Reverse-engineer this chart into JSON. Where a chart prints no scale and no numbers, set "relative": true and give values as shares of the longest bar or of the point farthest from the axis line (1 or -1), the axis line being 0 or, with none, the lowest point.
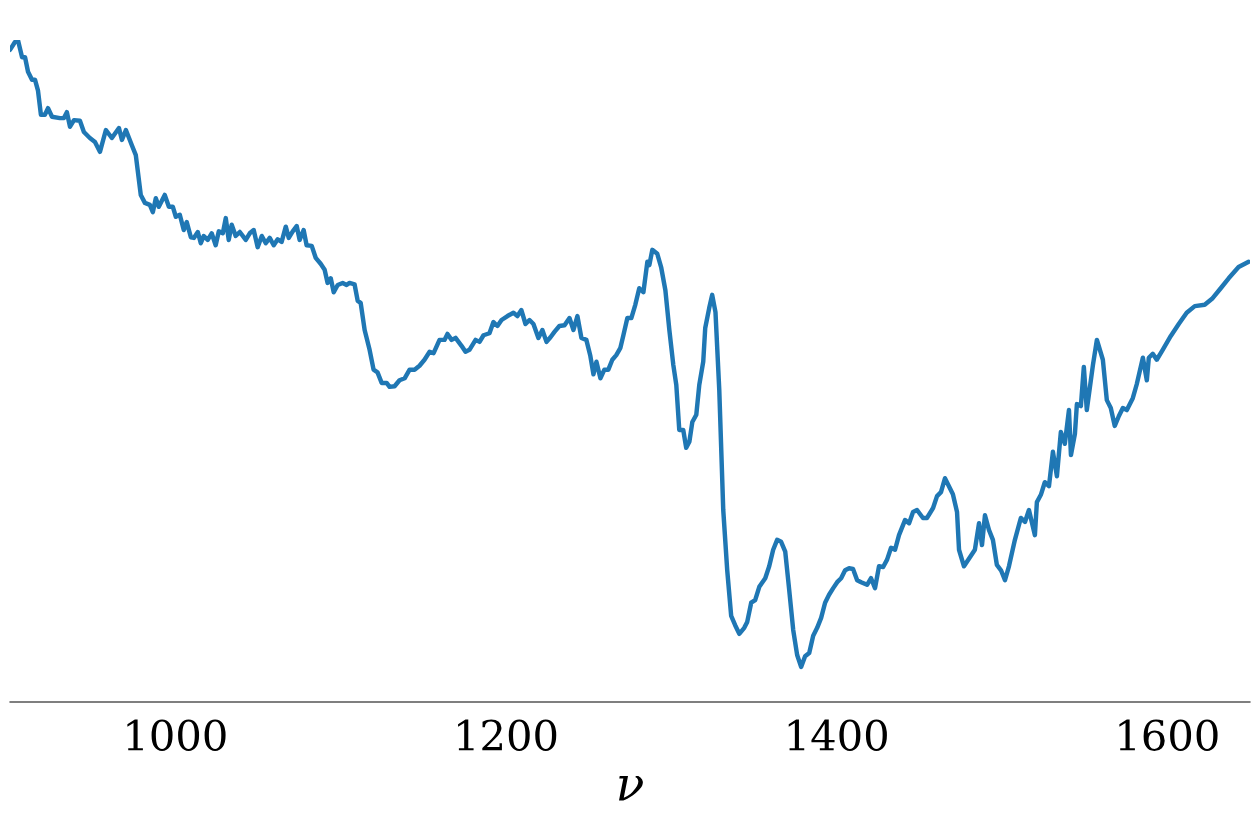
{
  "chart_data": {
    "type": "line",
    "relative": true,
    "xlabel": "ν",
    "xlim": [
      900,
      1650
    ],
    "xticks": [
      1000,
      1200,
      1400,
      1600
    ],
    "grid": false,
    "legend": false,
    "series": [
      {
        "color": "#1f77b4",
        "x": [
          900,
          903.0,
          904.8,
          907.3,
          909.1,
          910.9,
          913.3,
          915.1,
          916.9,
          918.7,
          921.1,
          923.0,
          925.4,
          930.2,
          932.6,
          934.4,
          936.3,
          938.7,
          942.3,
          944.7,
          948.3,
          951.4,
          954.4,
          958.0,
          961.6,
          965.9,
          967.7,
          970.1,
          973.7,
          976.1,
          979.1,
          981.6,
          984.6,
          986.4,
          988.2,
          990.0,
          993.6,
          996.1,
          998.5,
          1000.3,
          1002.7,
          1005.1,
          1006.9,
          1009.4,
          1011.2,
          1013.6,
          1015.4,
          1017.2,
          1019.6,
          1022.0,
          1024.4,
          1026.3,
          1028.7,
          1030.5,
          1032.3,
          1034.1,
          1036.5,
          1039.0,
          1042.6,
          1045.0,
          1047.4,
          1049.8,
          1052.3,
          1054.7,
          1057.1,
          1059.5,
          1061.9,
          1064.3,
          1066.8,
          1068.6,
          1071.0,
          1073.4,
          1075.2,
          1077.6,
          1079.4,
          1082.5,
          1084.9,
          1087.9,
          1090.3,
          1092.1,
          1094.0,
          1095.8,
          1098.2,
          1101.2,
          1103.6,
          1105.4,
          1108.4,
          1110.3,
          1112.1,
          1114.5,
          1117.5,
          1119.9,
          1122.3,
          1124.8,
          1127.8,
          1129.6,
          1132.6,
          1135.6,
          1138.7,
          1141.7,
          1144.7,
          1147.7,
          1150.7,
          1153.8,
          1156.2,
          1159.8,
          1162.8,
          1164.6,
          1167.1,
          1169.5,
          1173.1,
          1175.5,
          1177.9,
          1181.6,
          1184.0,
          1186.4,
          1190.0,
          1192.4,
          1194.8,
          1197.3,
          1200.9,
          1204.5,
          1206.9,
          1209.3,
          1211.8,
          1214.2,
          1216.6,
          1219.6,
          1222.0,
          1224.5,
          1226.9,
          1229.3,
          1232.3,
          1235.4,
          1238.4,
          1240.8,
          1243.2,
          1245.6,
          1248.6,
          1251.0,
          1252.9,
          1254.7,
          1257.1,
          1259.5,
          1261.9,
          1264.3,
          1266.7,
          1269.2,
          1271.0,
          1273.4,
          1275.8,
          1278.2,
          1280.6,
          1283.1,
          1285.5,
          1286.7,
          1288.5,
          1291.5,
          1293.9,
          1296.4,
          1298.8,
          1301.2,
          1303.0,
          1304.8,
          1307.2,
          1309.0,
          1310.9,
          1312.7,
          1315.1,
          1316.9,
          1319.3,
          1320.5,
          1322.9,
          1324.7,
          1326.7,
          1329.0,
          1331.4,
          1333.8,
          1336.2,
          1338.6,
          1341.1,
          1344.1,
          1345.9,
          1348.3,
          1350.7,
          1353.2,
          1356.8,
          1359.2,
          1361.6,
          1364.0,
          1366.4,
          1368.9,
          1371.3,
          1373.7,
          1376.1,
          1378.5,
          1380.9,
          1383.4,
          1385.8,
          1388.2,
          1390.6,
          1393.0,
          1395.4,
          1397.9,
          1400.3,
          1402.7,
          1405.1,
          1407.5,
          1409.9,
          1412.4,
          1414.8,
          1418.4,
          1420.8,
          1423.2,
          1425.6,
          1428.1,
          1430.5,
          1432.9,
          1435.3,
          1437.7,
          1441.4,
          1443.8,
          1446.2,
          1448.6,
          1452.2,
          1454.6,
          1458.3,
          1460.7,
          1463.1,
          1465.5,
          1467.9,
          1470.3,
          1472.8,
          1474.0,
          1477.0,
          1481.2,
          1483.6,
          1486.1,
          1487.9,
          1489.7,
          1492.1,
          1494.5,
          1496.9,
          1499.4,
          1501.8,
          1504.2,
          1507.8,
          1511.4,
          1513.9,
          1516.3,
          1519.9,
          1521.1,
          1523.5,
          1525.9,
          1528.4,
          1530.8,
          1533.2,
          1535.6,
          1538.0,
          1540.5,
          1541.7,
          1544.1,
          1545.3,
          1547.7,
          1549.5,
          1551.3,
          1555.0,
          1557.4,
          1561.0,
          1563.4,
          1565.8,
          1568.2,
          1570.7,
          1573.1,
          1575.5,
          1579.1,
          1581.5,
          1585.2,
          1587.6,
          1588.8,
          1591.2,
          1593.6,
          1597.2,
          1602.1,
          1606.9,
          1611.7,
          1616.6,
          1622.6,
          1627.4,
          1632.3,
          1637.1,
          1643.1,
          1649.2
        ],
        "values": [
          0.985,
          0.997,
          1.0,
          0.974,
          0.974,
          0.952,
          0.94,
          0.94,
          0.924,
          0.887,
          0.887,
          0.897,
          0.884,
          0.882,
          0.882,
          0.891,
          0.869,
          0.879,
          0.878,
          0.861,
          0.852,
          0.846,
          0.831,
          0.864,
          0.852,
          0.867,
          0.849,
          0.864,
          0.841,
          0.826,
          0.766,
          0.754,
          0.751,
          0.74,
          0.761,
          0.748,
          0.766,
          0.748,
          0.748,
          0.733,
          0.736,
          0.713,
          0.725,
          0.702,
          0.701,
          0.71,
          0.693,
          0.704,
          0.698,
          0.708,
          0.69,
          0.711,
          0.708,
          0.731,
          0.698,
          0.721,
          0.704,
          0.71,
          0.698,
          0.708,
          0.713,
          0.687,
          0.704,
          0.693,
          0.701,
          0.69,
          0.699,
          0.695,
          0.718,
          0.701,
          0.711,
          0.719,
          0.698,
          0.713,
          0.69,
          0.689,
          0.671,
          0.662,
          0.653,
          0.633,
          0.64,
          0.619,
          0.63,
          0.633,
          0.63,
          0.633,
          0.631,
          0.606,
          0.603,
          0.562,
          0.532,
          0.502,
          0.498,
          0.482,
          0.482,
          0.476,
          0.477,
          0.486,
          0.489,
          0.502,
          0.502,
          0.508,
          0.517,
          0.529,
          0.527,
          0.547,
          0.547,
          0.556,
          0.547,
          0.55,
          0.538,
          0.529,
          0.532,
          0.547,
          0.544,
          0.554,
          0.557,
          0.574,
          0.568,
          0.577,
          0.583,
          0.588,
          0.583,
          0.592,
          0.571,
          0.577,
          0.571,
          0.55,
          0.562,
          0.544,
          0.551,
          0.559,
          0.568,
          0.569,
          0.58,
          0.562,
          0.583,
          0.55,
          0.547,
          0.523,
          0.495,
          0.514,
          0.489,
          0.502,
          0.502,
          0.517,
          0.524,
          0.535,
          0.554,
          0.58,
          0.58,
          0.6,
          0.625,
          0.619,
          0.665,
          0.66,
          0.683,
          0.677,
          0.656,
          0.622,
          0.562,
          0.509,
          0.479,
          0.411,
          0.411,
          0.384,
          0.393,
          0.423,
          0.434,
          0.479,
          0.514,
          0.565,
          0.595,
          0.615,
          0.589,
          0.471,
          0.29,
          0.199,
          0.13,
          0.116,
          0.103,
          0.112,
          0.121,
          0.15,
          0.154,
          0.174,
          0.187,
          0.205,
          0.23,
          0.245,
          0.242,
          0.227,
          0.169,
          0.109,
          0.071,
          0.053,
          0.069,
          0.074,
          0.1,
          0.112,
          0.127,
          0.15,
          0.162,
          0.172,
          0.181,
          0.187,
          0.199,
          0.202,
          0.201,
          0.184,
          0.181,
          0.177,
          0.187,
          0.172,
          0.205,
          0.204,
          0.215,
          0.233,
          0.23,
          0.252,
          0.275,
          0.27,
          0.287,
          0.29,
          0.278,
          0.278,
          0.293,
          0.311,
          0.317,
          0.338,
          0.326,
          0.314,
          0.287,
          0.23,
          0.205,
          0.221,
          0.23,
          0.27,
          0.237,
          0.282,
          0.26,
          0.245,
          0.207,
          0.199,
          0.184,
          0.205,
          0.245,
          0.278,
          0.272,
          0.29,
          0.252,
          0.302,
          0.313,
          0.332,
          0.326,
          0.378,
          0.341,
          0.408,
          0.39,
          0.441,
          0.373,
          0.405,
          0.45,
          0.447,
          0.506,
          0.441,
          0.509,
          0.547,
          0.517,
          0.456,
          0.444,
          0.417,
          0.432,
          0.444,
          0.441,
          0.459,
          0.48,
          0.52,
          0.486,
          0.52,
          0.526,
          0.517,
          0.532,
          0.553,
          0.571,
          0.588,
          0.598,
          0.6,
          0.61,
          0.625,
          0.64,
          0.657,
          0.665
        ]
      }
    ]
  }
}
